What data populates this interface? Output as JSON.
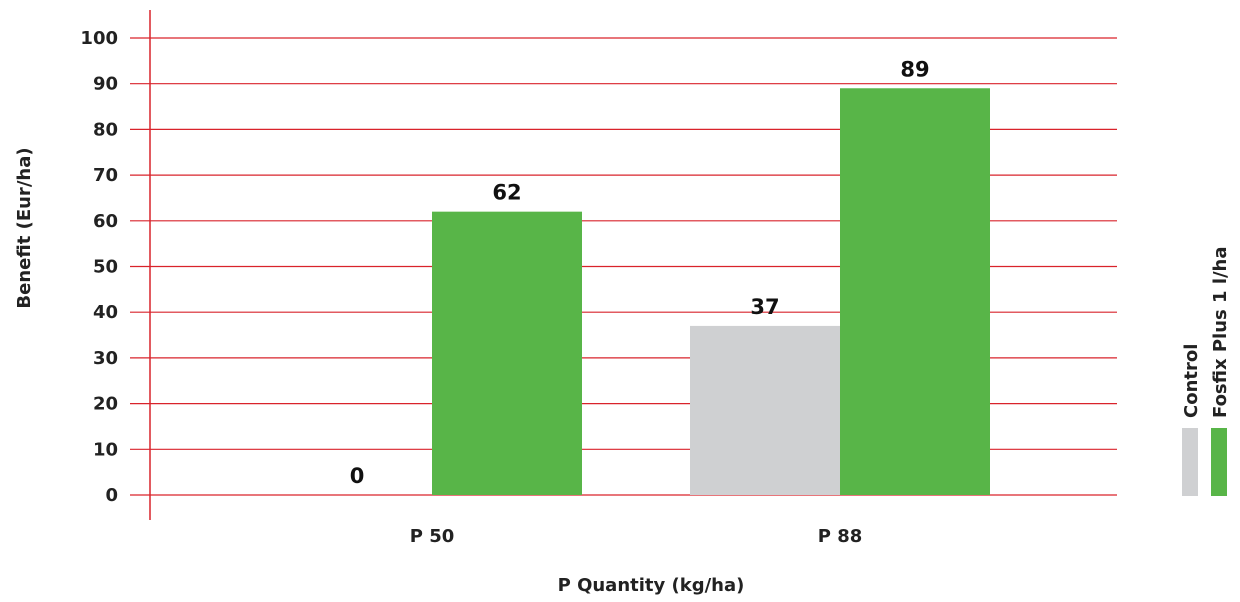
{
  "chart_data": {
    "type": "bar",
    "title": "",
    "xlabel": "P Quantity (kg/ha)",
    "ylabel": "Benefit (Eur/ha)",
    "categories": [
      "P 50",
      "P 88"
    ],
    "series": [
      {
        "name": "Control",
        "color": "#cfd0d2",
        "values": [
          0,
          37
        ]
      },
      {
        "name": "Fosfix Plus 1 l/ha",
        "color": "#58b548",
        "values": [
          62,
          89
        ]
      }
    ],
    "ylim": [
      0,
      100
    ],
    "yticks": [
      0,
      10,
      20,
      30,
      40,
      50,
      60,
      70,
      80,
      90,
      100
    ],
    "grid": true,
    "grid_color": "#d9232b",
    "legend_position": "right"
  }
}
